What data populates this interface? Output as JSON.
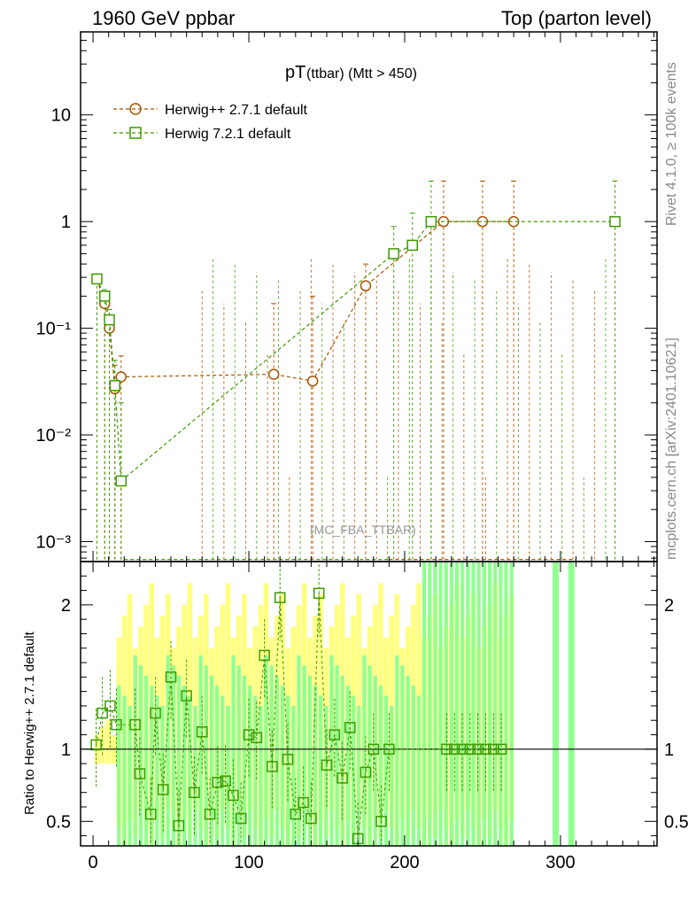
{
  "header": {
    "left": "1960 GeV ppbar",
    "right": "Top (parton level)"
  },
  "side_labels": {
    "rivet": "Rivet 4.1.0, ≥ 100k events",
    "mcplots": "mcplots.cern.ch [arXiv:2401.10621]"
  },
  "chart_data": {
    "type": "line",
    "title_main": "pT",
    "title_sub": "(ttbar) (Mtt > 450)",
    "watermark": "(MC_FBA_TTBAR)",
    "xlabel": "",
    "ylabel": "",
    "ratio_ylabel": "Ratio to Herwig++ 2.7.1 default",
    "xlim": [
      -8,
      362
    ],
    "ylim_log": [
      0.00065,
      60
    ],
    "ratio_ylim": [
      0.33,
      2.3
    ],
    "x_ticks": [
      "0",
      "100",
      "200",
      "300"
    ],
    "x_tick_values": [
      0,
      100,
      200,
      300
    ],
    "y_ticks": [
      "10",
      "1",
      "10⁻¹",
      "10⁻²",
      "10⁻³"
    ],
    "y_tick_values": [
      10,
      1,
      0.1,
      0.01,
      0.001
    ],
    "ratio_ticks": [
      "0.5",
      "1",
      "2"
    ],
    "ratio_tick_values": [
      0.5,
      1,
      2
    ],
    "colors": {
      "herwigpp": "#a85400",
      "herwig7": "#3d9b00",
      "band_yellow": "#ffff80",
      "band_green": "#90ff90"
    },
    "series": [
      {
        "name": "Herwig++ 2.7.1 default",
        "marker": "circle",
        "x": [
          2.5,
          7.5,
          10.5,
          14,
          18,
          116,
          141,
          175,
          225,
          250,
          270
        ],
        "y": [
          0.29,
          0.17,
          0.1,
          0.027,
          0.035,
          0.037,
          0.032,
          0.25,
          1.0,
          1.0,
          1.0
        ],
        "err_up": [
          0.32,
          0.19,
          0.13,
          0.045,
          0.055,
          0.17,
          0.2,
          0.4,
          2.4,
          2.4,
          2.4
        ]
      },
      {
        "name": "Herwig 7.2.1 default",
        "marker": "square",
        "x": [
          2.5,
          7.5,
          10.5,
          14,
          18,
          193,
          205,
          217,
          335
        ],
        "y": [
          0.29,
          0.2,
          0.12,
          0.029,
          0.0037,
          0.5,
          0.6,
          1.0,
          1.0
        ],
        "err_up": [
          0.32,
          0.23,
          0.15,
          0.05,
          0.02,
          0.9,
          1.2,
          2.4,
          2.4
        ]
      }
    ],
    "ratio_points": {
      "x": [
        2,
        6,
        11,
        15,
        27,
        30,
        37,
        40,
        45,
        50,
        55,
        60,
        65,
        70,
        75,
        80,
        85,
        90,
        95,
        100,
        105,
        110,
        115,
        120,
        125,
        130,
        135,
        140,
        145,
        150,
        155,
        160,
        165,
        170,
        175,
        180,
        185,
        190,
        227,
        232,
        237,
        242,
        247,
        252,
        257,
        262
      ],
      "y": [
        1.03,
        1.25,
        1.3,
        1.17,
        1.17,
        0.83,
        0.55,
        1.25,
        0.72,
        1.5,
        0.47,
        1.37,
        0.7,
        1.12,
        0.55,
        0.77,
        0.78,
        0.68,
        0.52,
        1.1,
        1.08,
        1.65,
        0.88,
        2.05,
        0.93,
        0.55,
        0.63,
        0.52,
        2.08,
        0.89,
        1.1,
        0.8,
        1.15,
        0.38,
        0.84,
        1.0,
        0.5,
        1.0,
        1.0,
        1.0,
        1.0,
        1.0,
        1.0,
        1.0,
        1.0,
        1.0
      ]
    }
  }
}
